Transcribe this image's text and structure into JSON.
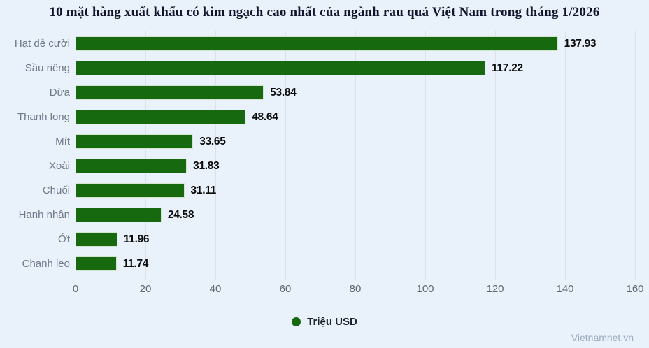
{
  "title": "10 mặt hàng xuất khẩu có kim ngạch cao nhất của ngành rau quả Việt Nam trong tháng 1/2026",
  "chart_data": {
    "type": "bar",
    "orientation": "horizontal",
    "title": "10 mặt hàng xuất khẩu có kim ngạch cao nhất của ngành rau quả Việt Nam trong tháng 1/2026",
    "categories": [
      "Hạt dẻ cười",
      "Sầu riêng",
      "Dừa",
      "Thanh long",
      "Mít",
      "Xoài",
      "Chuối",
      "Hạnh nhân",
      "Ớt",
      "Chanh leo"
    ],
    "values": [
      137.93,
      117.22,
      53.84,
      48.64,
      33.65,
      31.83,
      31.11,
      24.58,
      11.96,
      11.74
    ],
    "value_labels": [
      "137.93",
      "117.22",
      "53.84",
      "48.64",
      "33.65",
      "31.83",
      "31.11",
      "24.58",
      "11.96",
      "11.74"
    ],
    "xlabel": "",
    "ylabel": "",
    "xlim": [
      0,
      160
    ],
    "x_ticks": [
      0,
      20,
      40,
      60,
      80,
      100,
      120,
      140,
      160
    ],
    "grid": true,
    "legend_position": "bottom",
    "series_name": "Triệu USD",
    "bar_color": "#16690f"
  },
  "legend": {
    "label": "Triệu USD",
    "marker": "legend-dot-icon"
  },
  "watermark": "Vietnamnet.vn",
  "colors": {
    "background": "#e9f1fb",
    "bar": "#16690f",
    "gridline": "#dde1e6",
    "category_label": "#6e7a8a",
    "tick_label": "#63666c",
    "value_label": "#0c0c0c",
    "title": "#13142b",
    "watermark": "#9aabc0"
  }
}
